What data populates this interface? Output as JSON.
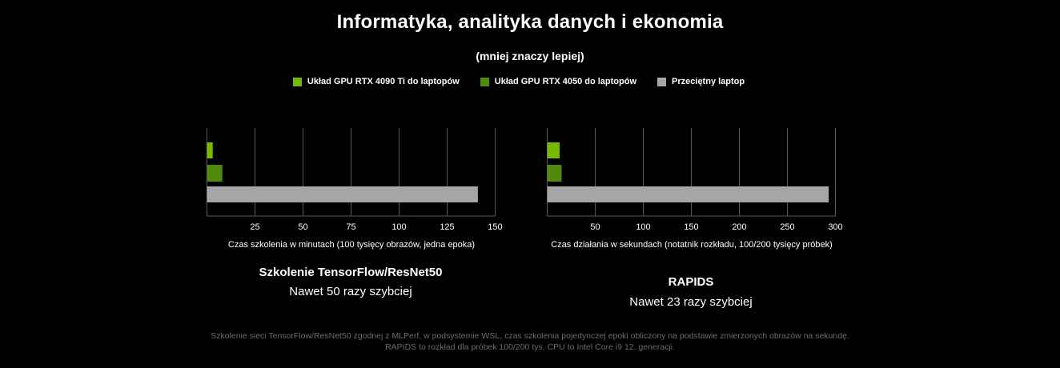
{
  "title": "Informatyka, analityka danych i ekonomia",
  "subtitle": "(mniej znaczy lepiej)",
  "colors": {
    "background": "#000000",
    "rtx4090": "#76b900",
    "rtx4050": "#4e8a0e",
    "laptop": "#a6a6a6",
    "grid": "#5a5a5a",
    "footnote": "#6b6b6b"
  },
  "legend": [
    {
      "label": "Układ GPU RTX 4090 Ti do laptopów",
      "color": "#76b900"
    },
    {
      "label": "Układ GPU RTX 4050 do laptopów",
      "color": "#4e8a0e"
    },
    {
      "label": "Przeciętny laptop",
      "color": "#a6a6a6"
    }
  ],
  "chart_data": [
    {
      "type": "bar",
      "orientation": "horizontal",
      "title": "Szkolenie TensorFlow/ResNet50",
      "caption": "Nawet 50 razy szybciej",
      "xlabel": "Czas szkolenia w minutach (100 tysięcy obrazów, jedna epoka)",
      "xlim": [
        0,
        150
      ],
      "ticks": [
        25,
        50,
        75,
        100,
        125,
        150
      ],
      "grid": true,
      "series": [
        {
          "name": "Układ GPU RTX 4090 Ti do laptopów",
          "value": 3,
          "color": "#76b900"
        },
        {
          "name": "Układ GPU RTX 4050 do laptopów",
          "value": 8,
          "color": "#4e8a0e"
        },
        {
          "name": "Przeciętny laptop",
          "value": 141,
          "color": "#a6a6a6"
        }
      ]
    },
    {
      "type": "bar",
      "orientation": "horizontal",
      "title": "RAPIDS",
      "caption": "Nawet 23 razy szybciej",
      "xlabel": "Czas działania w sekundach (notatnik rozkładu, 100/200 tysięcy próbek)",
      "xlim": [
        0,
        300
      ],
      "ticks": [
        50,
        100,
        150,
        200,
        250,
        300
      ],
      "grid": true,
      "series": [
        {
          "name": "Układ GPU RTX 4090 Ti do laptopów",
          "value": 13,
          "color": "#76b900"
        },
        {
          "name": "Układ GPU RTX 4050 do laptopów",
          "value": 15,
          "color": "#4e8a0e"
        },
        {
          "name": "Przeciętny laptop",
          "value": 293,
          "color": "#a6a6a6"
        }
      ]
    }
  ],
  "footnote": [
    "Szkolenie sieci TensorFlow/ResNet50 zgodnej z MLPerf, w podsystemie WSL, czas szkolenia pojedynczej epoki obliczony na podstawie zmierzonych obrazów na sekundę.",
    "RAPIDS to rozkład dla próbek 100/200 tys. CPU to Intel Core i9 12. generacji."
  ]
}
